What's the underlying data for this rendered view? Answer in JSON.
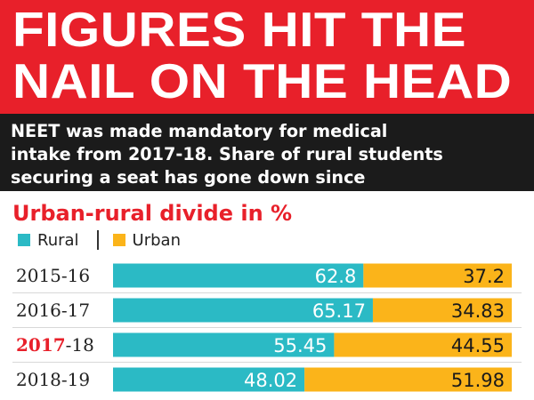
{
  "headline": {
    "line1": "FIGURES HIT THE",
    "line2": "NAIL ON THE HEAD"
  },
  "subheading": {
    "line1": "NEET was made mandatory for medical",
    "line2": "intake from 2017-18. Share of rural students",
    "line3": "securing a seat has gone down since"
  },
  "colors": {
    "banner": "#e8202a",
    "rural": "#2bbac5",
    "urban": "#fbb41a",
    "highlight": "#e8202a"
  },
  "chart_data": {
    "type": "bar",
    "orientation": "horizontal",
    "stacked": true,
    "title": "Urban-rural divide in %",
    "categories": [
      "2015-16",
      "2016-17",
      "2017-18",
      "2018-19"
    ],
    "highlight_category_prefix": "2017",
    "series": [
      {
        "name": "Rural",
        "values": [
          62.8,
          65.17,
          55.45,
          48.02
        ]
      },
      {
        "name": "Urban",
        "values": [
          37.2,
          34.83,
          44.55,
          51.98
        ]
      }
    ],
    "xlim": [
      0,
      100
    ],
    "legend": "top-left",
    "grid": false
  }
}
